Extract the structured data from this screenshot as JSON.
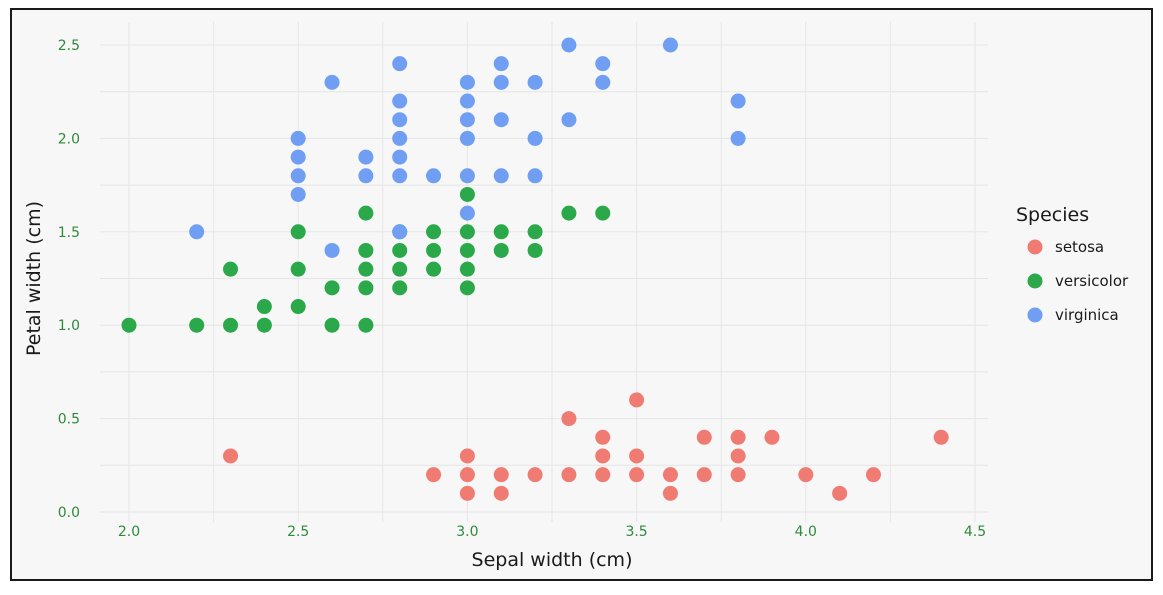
{
  "chart_data": {
    "type": "scatter",
    "xlabel": "Sepal width (cm)",
    "ylabel": "Petal width (cm)",
    "xlim": [
      1.9,
      4.5
    ],
    "ylim": [
      0.0,
      2.5
    ],
    "xticks": [
      "2.0",
      "2.5",
      "3.0",
      "3.5",
      "4.0",
      "4.5"
    ],
    "yticks": [
      "0.0",
      "0.5",
      "1.0",
      "1.5",
      "2.0",
      "2.5"
    ],
    "grid": true,
    "tick_color": "#2e8b3a",
    "legend": {
      "title": "Species",
      "placement": "right"
    },
    "series": [
      {
        "name": "setosa",
        "color": "#f07b72",
        "points": [
          [
            2.3,
            0.3
          ],
          [
            2.9,
            0.2
          ],
          [
            3.0,
            0.3
          ],
          [
            3.0,
            0.2
          ],
          [
            3.0,
            0.1
          ],
          [
            3.1,
            0.2
          ],
          [
            3.1,
            0.1
          ],
          [
            3.2,
            0.2
          ],
          [
            3.3,
            0.5
          ],
          [
            3.3,
            0.2
          ],
          [
            3.4,
            0.4
          ],
          [
            3.4,
            0.3
          ],
          [
            3.4,
            0.2
          ],
          [
            3.5,
            0.6
          ],
          [
            3.5,
            0.3
          ],
          [
            3.5,
            0.2
          ],
          [
            3.6,
            0.2
          ],
          [
            3.6,
            0.1
          ],
          [
            3.7,
            0.4
          ],
          [
            3.7,
            0.2
          ],
          [
            3.8,
            0.4
          ],
          [
            3.8,
            0.3
          ],
          [
            3.8,
            0.2
          ],
          [
            3.9,
            0.4
          ],
          [
            4.0,
            0.2
          ],
          [
            4.1,
            0.1
          ],
          [
            4.2,
            0.2
          ],
          [
            4.4,
            0.4
          ]
        ]
      },
      {
        "name": "versicolor",
        "color": "#2aa84a",
        "points": [
          [
            2.0,
            1.0
          ],
          [
            2.2,
            1.0
          ],
          [
            2.3,
            1.3
          ],
          [
            2.3,
            1.0
          ],
          [
            2.4,
            1.1
          ],
          [
            2.4,
            1.0
          ],
          [
            2.5,
            1.5
          ],
          [
            2.5,
            1.3
          ],
          [
            2.5,
            1.1
          ],
          [
            2.6,
            1.2
          ],
          [
            2.6,
            1.0
          ],
          [
            2.7,
            1.6
          ],
          [
            2.7,
            1.4
          ],
          [
            2.7,
            1.3
          ],
          [
            2.7,
            1.2
          ],
          [
            2.7,
            1.0
          ],
          [
            2.8,
            1.5
          ],
          [
            2.8,
            1.4
          ],
          [
            2.8,
            1.3
          ],
          [
            2.8,
            1.2
          ],
          [
            2.9,
            1.5
          ],
          [
            2.9,
            1.4
          ],
          [
            2.9,
            1.3
          ],
          [
            3.0,
            1.7
          ],
          [
            3.0,
            1.5
          ],
          [
            3.0,
            1.4
          ],
          [
            3.0,
            1.3
          ],
          [
            3.0,
            1.2
          ],
          [
            3.1,
            1.5
          ],
          [
            3.1,
            1.4
          ],
          [
            3.2,
            1.5
          ],
          [
            3.2,
            1.4
          ],
          [
            3.3,
            1.6
          ],
          [
            3.4,
            1.6
          ]
        ]
      },
      {
        "name": "virginica",
        "color": "#6f9ef2",
        "points": [
          [
            2.2,
            1.5
          ],
          [
            2.5,
            2.0
          ],
          [
            2.5,
            1.9
          ],
          [
            2.5,
            1.8
          ],
          [
            2.5,
            1.7
          ],
          [
            2.6,
            2.3
          ],
          [
            2.6,
            1.4
          ],
          [
            2.7,
            1.9
          ],
          [
            2.7,
            1.8
          ],
          [
            2.8,
            2.4
          ],
          [
            2.8,
            2.2
          ],
          [
            2.8,
            2.1
          ],
          [
            2.8,
            2.0
          ],
          [
            2.8,
            1.9
          ],
          [
            2.8,
            1.8
          ],
          [
            2.8,
            1.5
          ],
          [
            2.9,
            1.8
          ],
          [
            3.0,
            2.3
          ],
          [
            3.0,
            2.2
          ],
          [
            3.0,
            2.1
          ],
          [
            3.0,
            2.0
          ],
          [
            3.0,
            1.8
          ],
          [
            3.0,
            1.6
          ],
          [
            3.1,
            2.4
          ],
          [
            3.1,
            2.3
          ],
          [
            3.1,
            2.1
          ],
          [
            3.1,
            1.8
          ],
          [
            3.2,
            2.3
          ],
          [
            3.2,
            2.0
          ],
          [
            3.2,
            1.8
          ],
          [
            3.3,
            2.5
          ],
          [
            3.3,
            2.1
          ],
          [
            3.4,
            2.4
          ],
          [
            3.4,
            2.3
          ],
          [
            3.6,
            2.5
          ],
          [
            3.8,
            2.2
          ],
          [
            3.8,
            2.0
          ]
        ]
      }
    ]
  }
}
